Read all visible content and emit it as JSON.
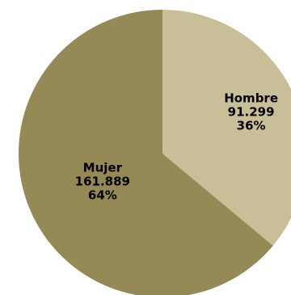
{
  "chart_data": {
    "type": "pie",
    "slices": [
      {
        "name": "Hombre",
        "value_label": "91.299",
        "value": 91299,
        "percent_label": "36%",
        "color": "#c8bf98"
      },
      {
        "name": "Mujer",
        "value_label": "161.889",
        "value": 161889,
        "percent_label": "64%",
        "color": "#958a55"
      }
    ],
    "start_angle_deg": 0,
    "direction": "clockwise",
    "legend": "none"
  }
}
